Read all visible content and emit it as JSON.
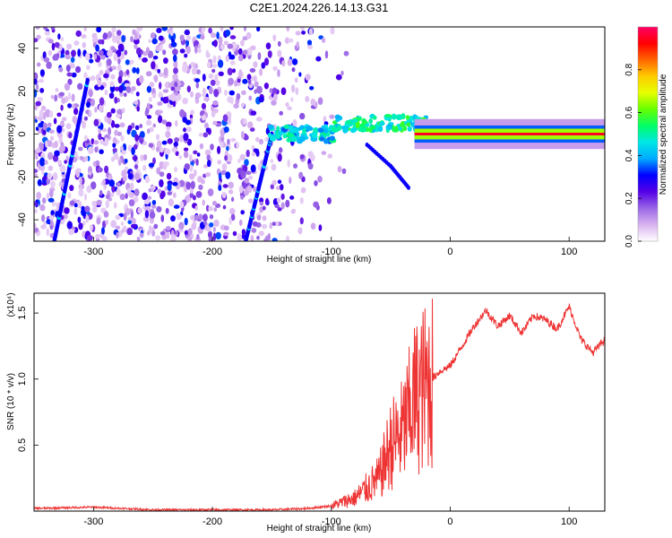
{
  "chart_data": [
    {
      "type": "heatmap",
      "title": "C2E1.2024.226.14.13.G31",
      "xlabel": "Height of straight line (km)",
      "ylabel": "Frequency (Hz)",
      "xlim": [
        -350,
        130
      ],
      "ylim": [
        -50,
        50
      ],
      "x_ticks": [
        -300,
        -200,
        -100,
        0,
        100
      ],
      "y_ticks": [
        -40,
        -20,
        0,
        20,
        40
      ],
      "colorbar": {
        "label": "Normalized spectral amplitude",
        "range": [
          0,
          1
        ],
        "ticks": [
          0.0,
          0.2,
          0.4,
          0.6,
          0.8
        ],
        "colors": [
          "#ffffff",
          "#d9b3f0",
          "#9966e6",
          "#5500e6",
          "#0000ff",
          "#00aaff",
          "#00e6e6",
          "#00ff66",
          "#66ff00",
          "#e6ff00",
          "#ffcc00",
          "#ff6600",
          "#ff0000",
          "#ff0066"
        ]
      },
      "features": [
        {
          "name": "noise-region",
          "x_range": [
            -350,
            -100
          ],
          "freq_range": [
            -50,
            50
          ],
          "amplitude": 0.1
        },
        {
          "name": "left-streak",
          "points": [
            [
              -333,
              -50
            ],
            [
              -305,
              25
            ]
          ],
          "amplitude": 0.3
        },
        {
          "name": "middle-streak",
          "points": [
            [
              -172,
              -50
            ],
            [
              -150,
              0
            ]
          ],
          "amplitude": 0.3
        },
        {
          "name": "signal-segment-1",
          "x_range": [
            -152,
            -98
          ],
          "freq": 0,
          "amplitude": 0.4
        },
        {
          "name": "signal-segment-2",
          "x_range": [
            -98,
            -20
          ],
          "freq": 5,
          "amplitude": 0.45
        },
        {
          "name": "signal-tail",
          "points": [
            [
              -70,
              -5
            ],
            [
              -50,
              -15
            ],
            [
              -35,
              -25
            ]
          ],
          "amplitude": 0.3
        },
        {
          "name": "carrier-line",
          "x_range": [
            -30,
            130
          ],
          "freq": 0,
          "amplitude": 0.95
        }
      ]
    },
    {
      "type": "line",
      "xlabel": "Height of straight line (km)",
      "ylabel": "SNR (10 * v/v)",
      "y_scale_label": "(x10⁴)",
      "xlim": [
        -350,
        130
      ],
      "ylim": [
        0,
        1.65
      ],
      "x_ticks": [
        -300,
        -200,
        -100,
        0,
        100
      ],
      "y_ticks": [
        0.5,
        1.0,
        1.5
      ],
      "y_tick_labels": [
        "0.5",
        "1.0",
        "1.5"
      ],
      "series": [
        {
          "name": "SNR",
          "color": "#ee3333",
          "x": [
            -350,
            -300,
            -250,
            -200,
            -150,
            -120,
            -100,
            -80,
            -60,
            -50,
            -40,
            -30,
            -20,
            -15,
            -10,
            0,
            10,
            20,
            30,
            40,
            50,
            60,
            70,
            80,
            90,
            100,
            110,
            120,
            130
          ],
          "y": [
            0.02,
            0.03,
            0.01,
            0.01,
            0.01,
            0.02,
            0.04,
            0.1,
            0.25,
            0.5,
            0.6,
            0.85,
            0.95,
            1.0,
            1.05,
            1.1,
            1.25,
            1.4,
            1.52,
            1.4,
            1.48,
            1.35,
            1.48,
            1.45,
            1.38,
            1.55,
            1.3,
            1.2,
            1.3
          ]
        }
      ]
    }
  ]
}
